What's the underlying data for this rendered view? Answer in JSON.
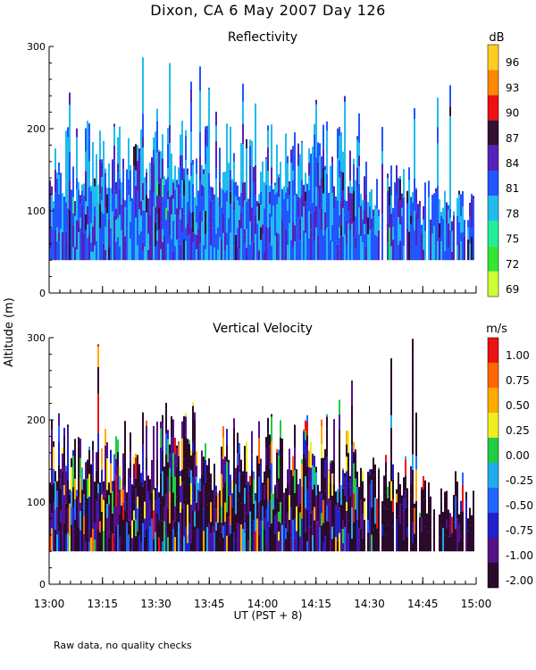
{
  "figure": {
    "title": "Dixon, CA   6 May 2007   Day 126",
    "shared_ylabel": "Altitude (m)",
    "xlabel": "UT  (PST + 8)",
    "footnote": "Raw data, no quality checks"
  },
  "chart_data": [
    {
      "type": "heatmap",
      "title": "Reflectivity",
      "xlabel": "UT  (PST + 8)",
      "ylabel": "Altitude (m)",
      "x_ticks": [
        "13:00",
        "13:15",
        "13:30",
        "13:45",
        "14:00",
        "14:15",
        "14:30",
        "14:45",
        "15:00"
      ],
      "y_ticks": [
        0,
        100,
        200,
        300
      ],
      "ylim": [
        0,
        300
      ],
      "xlim": [
        "13:00",
        "15:00"
      ],
      "colorbar": {
        "unit": "dB",
        "levels": [
          69,
          72,
          75,
          78,
          81,
          84,
          87,
          90,
          93,
          96
        ],
        "colors": [
          "#ccff33",
          "#33e633",
          "#22ee99",
          "#22bbee",
          "#2255ff",
          "#5522bb",
          "#331133",
          "#ee1111",
          "#ff8800",
          "#ffcc22"
        ]
      },
      "data_summary": {
        "min_altitude_m": 40,
        "typical_top_m": 200,
        "max_echo_top_m": 300,
        "dominant_values_dB": [
          78,
          81,
          84
        ]
      }
    },
    {
      "type": "heatmap",
      "title": "Vertical Velocity",
      "xlabel": "UT  (PST + 8)",
      "ylabel": "Altitude (m)",
      "x_ticks": [
        "13:00",
        "13:15",
        "13:30",
        "13:45",
        "14:00",
        "14:15",
        "14:30",
        "14:45",
        "15:00"
      ],
      "y_ticks": [
        0,
        100,
        200,
        300
      ],
      "ylim": [
        0,
        300
      ],
      "xlim": [
        "13:00",
        "15:00"
      ],
      "colorbar": {
        "unit": "m/s",
        "levels": [
          "-2.00",
          "-1.00",
          "-0.75",
          "-0.50",
          "-0.25",
          "0.00",
          "0.25",
          "0.50",
          "0.75",
          "1.00"
        ],
        "colors": [
          "#2a0a2a",
          "#551188",
          "#2222cc",
          "#2266ff",
          "#22aaee",
          "#22cc44",
          "#eeee22",
          "#ffaa00",
          "#ff6600",
          "#ee1111"
        ]
      },
      "data_summary": {
        "min_altitude_m": 40,
        "typical_top_m": 200,
        "max_echo_top_m": 300,
        "dominant_values_ms": [
          "-2.00",
          "-1.00",
          "-0.75"
        ]
      }
    }
  ]
}
